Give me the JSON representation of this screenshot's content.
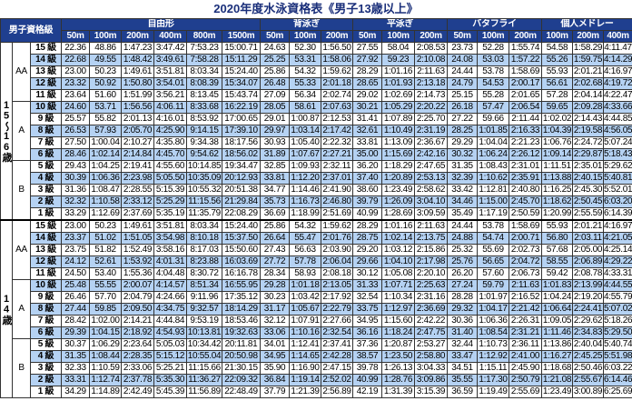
{
  "title": "2020年度水泳資格表《男子13歳以上》",
  "header": {
    "label": "男子資格級",
    "groups": [
      {
        "name": "自由形",
        "distances": [
          "50m",
          "100m",
          "200m",
          "400m",
          "800m",
          "1500m"
        ]
      },
      {
        "name": "背泳ぎ",
        "distances": [
          "50m",
          "100m",
          "200m"
        ]
      },
      {
        "name": "平泳ぎ",
        "distances": [
          "50m",
          "100m",
          "200m"
        ]
      },
      {
        "name": "バタフライ",
        "distances": [
          "50m",
          "100m",
          "200m"
        ]
      },
      {
        "name": "個人メドレー",
        "distances": [
          "100m",
          "200m",
          "400m"
        ]
      }
    ]
  },
  "blocks": [
    {
      "age": "15〜16歳",
      "classes": [
        {
          "name": "AA",
          "rows": [
            {
              "level": "15 級",
              "times": [
                "22.36",
                "48.86",
                "1:47.23",
                "3:47.42",
                "7:53.23",
                "15:00.71",
                "24.63",
                "52.30",
                "1:56.50",
                "27.55",
                "58.04",
                "2:08.53",
                "23.73",
                "52.28",
                "1:55.74",
                "54.58",
                "1:58.29",
                "4:11.47"
              ]
            },
            {
              "level": "14 級",
              "times": [
                "22.68",
                "49.55",
                "1:48.42",
                "3:49.61",
                "7:58.28",
                "15:11.29",
                "25.25",
                "53.31",
                "1:58.06",
                "27.92",
                "59.23",
                "2:10.08",
                "24.08",
                "53.03",
                "1:57.22",
                "55.26",
                "1:59.75",
                "4:14.29"
              ]
            },
            {
              "level": "13 級",
              "times": [
                "23.00",
                "50.23",
                "1:49.61",
                "3:51.81",
                "8:03.34",
                "15:24.40",
                "25.86",
                "54.32",
                "1:59.62",
                "28.29",
                "1:01.16",
                "2:11.63",
                "24.44",
                "53.78",
                "1:58.69",
                "55.93",
                "2:01.21",
                "4:16.97"
              ]
            },
            {
              "level": "12 級",
              "times": [
                "23.32",
                "50.92",
                "1:50.80",
                "3:54.01",
                "8:08.39",
                "15:34.07",
                "26.48",
                "55.33",
                "2:01.18",
                "28.65",
                "1:01.93",
                "2:13.18",
                "24.79",
                "54.53",
                "2:00.17",
                "56.61",
                "2:02.68",
                "4:19.72"
              ]
            },
            {
              "level": "11 級",
              "times": [
                "23.64",
                "51.60",
                "1:51.99",
                "3:56.21",
                "8:13.45",
                "15:43.74",
                "27.09",
                "56.34",
                "2:02.74",
                "29.02",
                "1:02.69",
                "2:14.73",
                "25.15",
                "55.28",
                "2:01.65",
                "57.28",
                "2:04.14",
                "4:22.47"
              ]
            }
          ]
        },
        {
          "name": "A",
          "rows": [
            {
              "level": "10 級",
              "times": [
                "24.60",
                "53.71",
                "1:56.56",
                "4:06.11",
                "8:33.68",
                "16:22.19",
                "28.05",
                "58.61",
                "2:07.63",
                "30.21",
                "1:05.29",
                "2:20.22",
                "26.18",
                "57.47",
                "2:06.54",
                "59.65",
                "2:09.28",
                "4:33.66"
              ]
            },
            {
              "level": "9 級",
              "times": [
                "25.57",
                "55.82",
                "2:01.13",
                "4:16.01",
                "8:53.92",
                "17:00.65",
                "29.01",
                "1:00.87",
                "2:12.53",
                "31.41",
                "1:07.89",
                "2:25.70",
                "27.22",
                "59.66",
                "2:11.44",
                "1:02.02",
                "2:14.43",
                "4:44.85"
              ]
            },
            {
              "level": "8 級",
              "times": [
                "26.53",
                "57.93",
                "2:05.70",
                "4:25.90",
                "9:14.15",
                "17:39.10",
                "29.97",
                "1:03.14",
                "2:17.42",
                "32.61",
                "1:10.49",
                "2:31.19",
                "28.25",
                "1:01.85",
                "2:16.33",
                "1:04.39",
                "2:19.58",
                "4:56.05"
              ]
            },
            {
              "level": "7 級",
              "times": [
                "27.50",
                "1:00.04",
                "2:10.27",
                "4:35.80",
                "9:34.38",
                "18:17.56",
                "30.93",
                "1:05.40",
                "2:22.32",
                "33.81",
                "1:13.09",
                "2:36.67",
                "29.29",
                "1:04.04",
                "2:21.23",
                "1:06.76",
                "2:24.72",
                "5:07.24"
              ]
            },
            {
              "level": "6 級",
              "times": [
                "28.46",
                "1:02.14",
                "2:14.84",
                "4:45.70",
                "9:54.62",
                "18:56.02",
                "31.89",
                "1:07.67",
                "2:27.21",
                "35.00",
                "1:15.69",
                "2:42.16",
                "30.32",
                "1:06.24",
                "2:26.12",
                "1:09.14",
                "2:29.87",
                "5:18.43"
              ]
            }
          ]
        },
        {
          "name": "B",
          "rows": [
            {
              "level": "5 級",
              "times": [
                "29.43",
                "1:04.25",
                "2:19.41",
                "4:55.60",
                "10:14.85",
                "19:34.47",
                "32.85",
                "1:09.93",
                "2:32.11",
                "36.20",
                "1:18.29",
                "2:47.65",
                "31.35",
                "1:08.43",
                "2:31.01",
                "1:11.51",
                "2:35.01",
                "5:29.62"
              ]
            },
            {
              "level": "4 級",
              "times": [
                "30.39",
                "1:06.36",
                "2:23.98",
                "5:05.50",
                "10:35.09",
                "20:12.93",
                "33.81",
                "1:12.20",
                "2:37.01",
                "37.40",
                "1:20.89",
                "2:53.13",
                "32.39",
                "1:10.62",
                "2:35.91",
                "1:13.88",
                "2:40.15",
                "5:40.81"
              ]
            },
            {
              "level": "3 級",
              "times": [
                "31.36",
                "1:08.47",
                "2:28.55",
                "5:15.39",
                "10:55.32",
                "20:51.38",
                "34.77",
                "1:14.46",
                "2:41.90",
                "38.60",
                "1:23.49",
                "2:58.62",
                "33.42",
                "1:12.81",
                "2:40.80",
                "1:16.25",
                "2:45.30",
                "5:52.01"
              ]
            },
            {
              "level": "2 級",
              "times": [
                "32.32",
                "1:10.58",
                "2:33.12",
                "5:25.29",
                "11:15.56",
                "21:29.84",
                "35.73",
                "1:16.73",
                "2:46.80",
                "39.79",
                "1:26.09",
                "3:04.10",
                "34.46",
                "1:15.00",
                "2:45.70",
                "1:18.62",
                "2:50.45",
                "6:03.20"
              ]
            },
            {
              "level": "1 級",
              "times": [
                "33.29",
                "1:12.69",
                "2:37.69",
                "5:35.19",
                "11:35.79",
                "22:08.29",
                "36.69",
                "1:18.99",
                "2:51.69",
                "40.99",
                "1:28.69",
                "3:09.59",
                "35.49",
                "1:17.19",
                "2:50.59",
                "1:20.99",
                "2:55.59",
                "6:14.39"
              ]
            }
          ]
        }
      ]
    },
    {
      "age": "14歳",
      "classes": [
        {
          "name": "AA",
          "rows": [
            {
              "level": "15 級",
              "times": [
                "23.00",
                "50.23",
                "1:49.61",
                "3:51.81",
                "8:03.34",
                "15:24.40",
                "25.86",
                "54.32",
                "1:59.62",
                "28.29",
                "1:01.16",
                "2:11.63",
                "24.44",
                "53.78",
                "1:58.69",
                "55.93",
                "2:01.21",
                "4:16.97"
              ]
            },
            {
              "level": "14 級",
              "times": [
                "23.37",
                "51.02",
                "1:51.05",
                "3:54.98",
                "8:10.18",
                "15:37.50",
                "26.64",
                "55.47",
                "2:01.76",
                "28.75",
                "1:02.14",
                "2:13.75",
                "24.88",
                "54.74",
                "2:00.71",
                "56.80",
                "2:03.11",
                "4:21.05"
              ]
            },
            {
              "level": "13 級",
              "times": [
                "23.75",
                "51.82",
                "1:52.49",
                "3:58.16",
                "8:17.03",
                "15:50.60",
                "27.43",
                "56.63",
                "2:03.90",
                "29.20",
                "1:03.12",
                "2:15.86",
                "25.32",
                "55.69",
                "2:02.73",
                "57.68",
                "2:05.00",
                "4:25.14"
              ]
            },
            {
              "level": "12 級",
              "times": [
                "24.12",
                "52.61",
                "1:53.92",
                "4:01.31",
                "8:23.88",
                "16:03.69",
                "27.72",
                "57.78",
                "2:06.04",
                "29.66",
                "1:04.10",
                "2:17.98",
                "25.76",
                "56.65",
                "2:04.72",
                "58.55",
                "2:06.89",
                "4:29.22"
              ]
            },
            {
              "level": "11 級",
              "times": [
                "24.50",
                "53.40",
                "1:55.36",
                "4:04.48",
                "8:30.72",
                "16:16.78",
                "28.34",
                "58.93",
                "2:08.18",
                "30.12",
                "1:05.08",
                "2:20.10",
                "26.20",
                "57.60",
                "2:06.73",
                "59.42",
                "2:08.78",
                "4:33.31"
              ]
            }
          ]
        },
        {
          "name": "A",
          "rows": [
            {
              "level": "10 級",
              "times": [
                "25.48",
                "55.55",
                "2:00.07",
                "4:14.57",
                "8:51.34",
                "16:55.95",
                "29.28",
                "1:01.18",
                "2:13.05",
                "31.33",
                "1:07.71",
                "2:25.63",
                "27.24",
                "59.79",
                "2:11.63",
                "1:01.83",
                "2:13.99",
                "4:44.55"
              ]
            },
            {
              "level": "9 級",
              "times": [
                "26.46",
                "57.70",
                "2:04.79",
                "4:24.66",
                "9:11.96",
                "17:35.12",
                "30.23",
                "1:03.42",
                "2:17.92",
                "32.54",
                "1:10.34",
                "2:31.16",
                "28.28",
                "1:01.97",
                "2:16.52",
                "1:04.24",
                "2:19.20",
                "4:55.79"
              ]
            },
            {
              "level": "8 級",
              "times": [
                "27.44",
                "59.85",
                "2:09.50",
                "4:34.75",
                "9:32.57",
                "18:14.29",
                "31.17",
                "1:05.67",
                "2:22.79",
                "33.75",
                "1:12.97",
                "2:36.69",
                "29.32",
                "1:04.17",
                "2:21.42",
                "1:06.64",
                "2:24.41",
                "5:07.02"
              ]
            },
            {
              "level": "7 級",
              "times": [
                "28.42",
                "1:02.00",
                "2:14.21",
                "4:44.84",
                "9:53.19",
                "18:53.46",
                "32.12",
                "1:07.91",
                "2:27.66",
                "34.95",
                "1:15.60",
                "2:42.22",
                "30.36",
                "1:06.36",
                "2:26.31",
                "1:09.05",
                "2:29.62",
                "5:18.26"
              ]
            },
            {
              "level": "6 級",
              "times": [
                "29.39",
                "1:04.15",
                "2:18.92",
                "4:54.93",
                "10:13.81",
                "19:32.63",
                "33.06",
                "1:10.16",
                "2:32.54",
                "36.16",
                "1:18.24",
                "2:47.75",
                "31.40",
                "1:08.54",
                "2:31.21",
                "1:11.46",
                "2:34.83",
                "5:29.50"
              ]
            }
          ]
        },
        {
          "name": "B",
          "rows": [
            {
              "level": "5 級",
              "times": [
                "30.37",
                "1:06.29",
                "2:23.64",
                "5:05.03",
                "10:34.42",
                "20:11.81",
                "34.01",
                "1:12.41",
                "2:37.41",
                "37.36",
                "1:20.87",
                "2:53.27",
                "32.44",
                "1:10.73",
                "2:36.11",
                "1:13.86",
                "2:40.04",
                "5:40.74"
              ]
            },
            {
              "level": "4 級",
              "times": [
                "31.35",
                "1:08.44",
                "2:28.35",
                "5:15.12",
                "10:55.04",
                "20:50.98",
                "34.95",
                "1:14.65",
                "2:42.28",
                "38.57",
                "1:23.50",
                "2:58.80",
                "33.47",
                "1:12.92",
                "2:41.00",
                "1:16.27",
                "2:45.25",
                "5:51.98"
              ]
            },
            {
              "level": "3 級",
              "times": [
                "32.33",
                "1:10.59",
                "2:33.06",
                "5:25.21",
                "11:15.66",
                "21:30.15",
                "35.90",
                "1:16.90",
                "2:47.15",
                "39.78",
                "1:26.13",
                "3:04.33",
                "34.51",
                "1:15.11",
                "2:45.90",
                "1:18.68",
                "2:50.46",
                "6:03.22"
              ]
            },
            {
              "level": "2 級",
              "times": [
                "33.31",
                "1:12.74",
                "2:37.78",
                "5:35.30",
                "11:36.27",
                "22:09.32",
                "36.84",
                "1:19.14",
                "2:52.02",
                "40.99",
                "1:28.76",
                "3:09.86",
                "35.55",
                "1:17.30",
                "2:50.79",
                "1:21.08",
                "2:55.67",
                "6:14.46"
              ]
            },
            {
              "level": "1 級",
              "times": [
                "34.29",
                "1:14.89",
                "2:42.49",
                "5:45.39",
                "11:56.89",
                "22:48.49",
                "37.79",
                "1:21.39",
                "2:56.89",
                "42.19",
                "1:31.39",
                "3:15.39",
                "36.59",
                "1:19.49",
                "2:55.69",
                "1:23.49",
                "3:00.89",
                "6:25.69"
              ]
            }
          ]
        }
      ]
    }
  ]
}
